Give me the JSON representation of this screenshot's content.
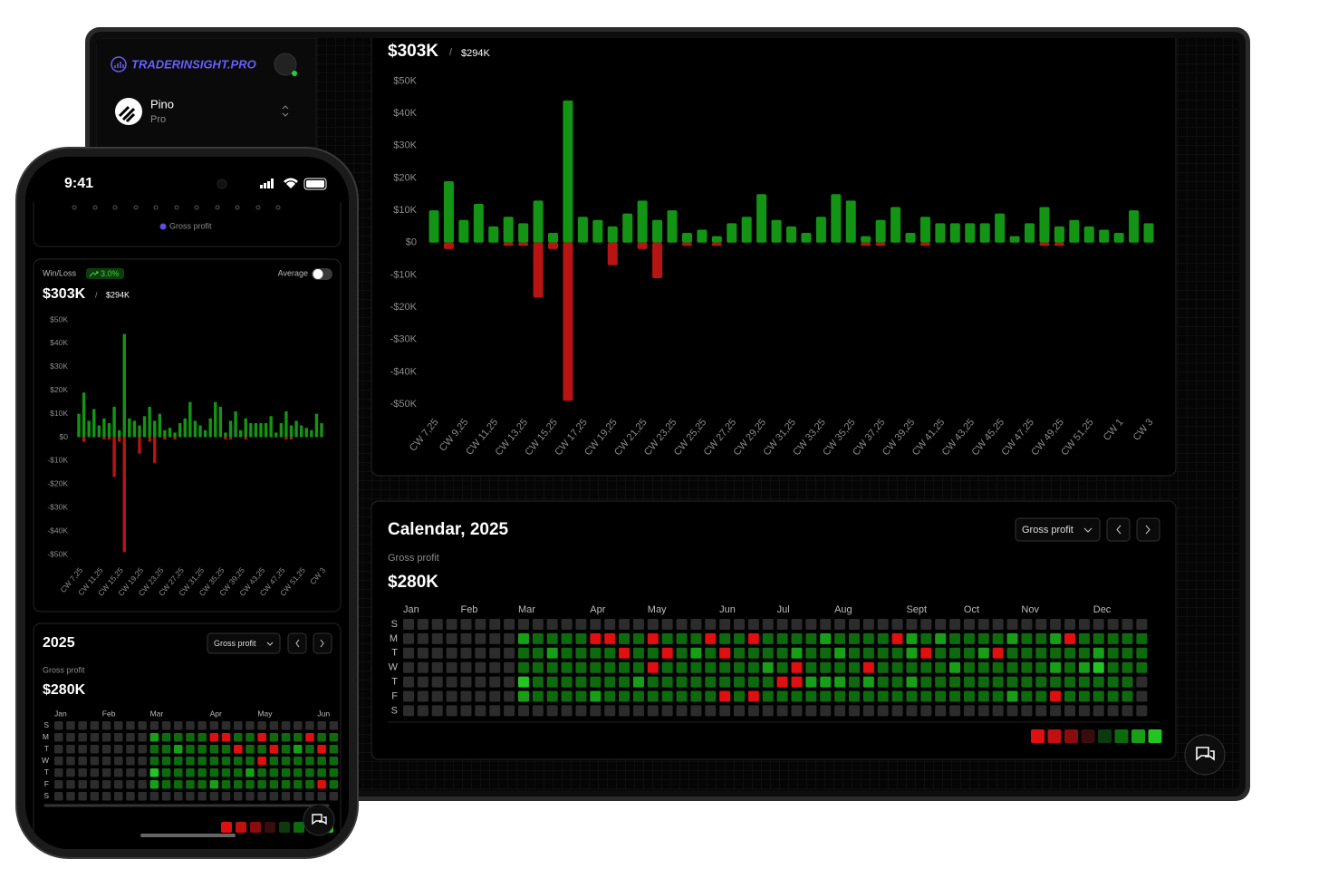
{
  "brand": "TRADERINSIGHT.PRO",
  "account": {
    "name": "Pino",
    "plan": "Pro"
  },
  "status_time": "9:41",
  "win_loss": {
    "label": "Win/Loss",
    "change": "3.0%",
    "average_label": "Average",
    "total": "$303K",
    "separator": "/",
    "previous": "$294K"
  },
  "chart_data": [
    {
      "type": "bar",
      "categories": [
        "CW 7,25",
        null,
        "CW 9,25",
        null,
        "CW 11,25",
        null,
        "CW 13,25",
        null,
        "CW 15,25",
        null,
        "CW 17,25",
        null,
        "CW 19,25",
        null,
        "CW 21,25",
        null,
        "CW 23,25",
        null,
        "CW 25,25",
        null,
        "CW 27,25",
        null,
        "CW 29,25",
        null,
        "CW 31,25",
        null,
        "CW 33,25",
        null,
        "CW 35,25",
        null,
        "CW 37,25",
        null,
        "CW 39,25",
        null,
        "CW 41,25",
        null,
        "CW 43,25",
        null,
        "CW 45,25",
        null,
        "CW 47,25",
        null,
        "CW 49,25",
        null,
        "CW 51,25",
        null,
        "CW 1",
        null,
        "CW 3"
      ],
      "series": [
        {
          "name": "Gross profit",
          "color": "#149414",
          "values": [
            10000,
            19000,
            7000,
            12000,
            5000,
            8000,
            6000,
            13000,
            3000,
            44000,
            8000,
            7000,
            5000,
            9000,
            13000,
            7000,
            10000,
            3000,
            4000,
            2000,
            6000,
            8000,
            15000,
            7000,
            5000,
            3000,
            8000,
            15000,
            13000,
            2000,
            7000,
            11000,
            3000,
            8000,
            6000,
            6000,
            6000,
            6000,
            9000,
            2000,
            6000,
            11000,
            5000,
            7000,
            5000,
            4000,
            3000,
            10000,
            6000
          ]
        },
        {
          "color": "#b81414",
          "values": [
            0,
            -2000,
            0,
            0,
            0,
            -1000,
            -1000,
            -17000,
            -2000,
            -49000,
            0,
            0,
            -7000,
            0,
            -2000,
            -11000,
            0,
            -1000,
            0,
            -1000,
            0,
            0,
            0,
            0,
            0,
            0,
            0,
            0,
            0,
            -1000,
            -1000,
            0,
            0,
            -1000,
            0,
            0,
            0,
            0,
            0,
            0,
            0,
            -1000,
            -1000,
            0,
            0,
            0,
            0,
            0,
            0
          ]
        }
      ],
      "ylim": [
        -50000,
        50000
      ],
      "yticks": [
        {
          "value": 50000,
          "label": "$50K"
        },
        {
          "value": 40000,
          "label": "$40K"
        },
        {
          "value": 30000,
          "label": "$30K"
        },
        {
          "value": 20000,
          "label": "$20K"
        },
        {
          "value": 10000,
          "label": "$10K"
        },
        {
          "value": 0,
          "label": "$0"
        },
        {
          "value": -10000,
          "label": "-$10K"
        },
        {
          "value": -20000,
          "label": "-$20K"
        },
        {
          "value": -30000,
          "label": "-$30K"
        },
        {
          "value": -40000,
          "label": "-$40K"
        },
        {
          "value": -50000,
          "label": "-$50K"
        }
      ],
      "grid": false
    },
    {
      "type": "heatmap",
      "title": "Calendar, 2025",
      "short_title": "2025",
      "metric_label": "Gross profit",
      "total": "$280K",
      "dropdown": "Gross profit",
      "x": [
        "Jan",
        null,
        null,
        null,
        "Feb",
        null,
        null,
        null,
        "Mar",
        null,
        null,
        null,
        null,
        "Apr",
        null,
        null,
        null,
        "May",
        null,
        null,
        null,
        null,
        "Jun",
        null,
        null,
        null,
        "Jul",
        null,
        null,
        null,
        "Aug",
        null,
        null,
        null,
        null,
        "Sept",
        null,
        null,
        null,
        "Oct",
        null,
        null,
        null,
        "Nov",
        null,
        null,
        null,
        null,
        "Dec",
        null,
        null,
        null
      ],
      "y": [
        "S",
        "M",
        "T",
        "W",
        "T",
        "F",
        "S"
      ],
      "values": [
        [
          0,
          0,
          0,
          0,
          0,
          0,
          0,
          0,
          0,
          0,
          0,
          0,
          0,
          0,
          0,
          0,
          0,
          0,
          0,
          0,
          0,
          0,
          0,
          0,
          0,
          0,
          0,
          0,
          0,
          0,
          0,
          0,
          0,
          0,
          0,
          0,
          0,
          0,
          0,
          0,
          0,
          0,
          0,
          0,
          0,
          0,
          0,
          0,
          0,
          0,
          0,
          0
        ],
        [
          0,
          0,
          0,
          0,
          0,
          0,
          0,
          0,
          3,
          2,
          2,
          2,
          2,
          -4,
          -4,
          2,
          2,
          -4,
          2,
          2,
          2,
          -4,
          2,
          2,
          -4,
          2,
          2,
          2,
          2,
          3,
          2,
          2,
          2,
          2,
          -4,
          3,
          2,
          3,
          2,
          2,
          2,
          2,
          3,
          2,
          2,
          3,
          -4,
          2,
          2,
          2,
          2,
          2
        ],
        [
          0,
          0,
          0,
          0,
          0,
          0,
          0,
          0,
          2,
          2,
          3,
          2,
          2,
          2,
          2,
          -4,
          2,
          2,
          -4,
          2,
          3,
          2,
          -4,
          2,
          2,
          2,
          2,
          3,
          2,
          2,
          3,
          2,
          2,
          2,
          2,
          3,
          -4,
          2,
          2,
          2,
          3,
          -4,
          2,
          2,
          2,
          2,
          2,
          2,
          3,
          2,
          2,
          2
        ],
        [
          0,
          0,
          0,
          0,
          0,
          0,
          0,
          0,
          2,
          2,
          2,
          2,
          2,
          2,
          2,
          2,
          2,
          -4,
          2,
          2,
          2,
          2,
          2,
          2,
          2,
          3,
          2,
          -4,
          2,
          2,
          2,
          2,
          -4,
          2,
          2,
          2,
          2,
          2,
          3,
          2,
          2,
          2,
          2,
          2,
          2,
          3,
          2,
          3,
          4,
          2,
          2,
          2
        ],
        [
          0,
          0,
          0,
          0,
          0,
          0,
          0,
          0,
          4,
          2,
          2,
          2,
          2,
          2,
          2,
          2,
          3,
          2,
          2,
          2,
          2,
          2,
          2,
          2,
          2,
          2,
          -4,
          -4,
          3,
          3,
          3,
          2,
          3,
          2,
          2,
          3,
          2,
          2,
          2,
          2,
          2,
          2,
          2,
          2,
          2,
          2,
          2,
          2,
          2,
          2,
          2,
          0
        ],
        [
          0,
          0,
          0,
          0,
          0,
          0,
          0,
          0,
          3,
          2,
          2,
          2,
          2,
          3,
          2,
          2,
          2,
          2,
          2,
          2,
          2,
          2,
          -4,
          2,
          -4,
          2,
          2,
          2,
          2,
          2,
          2,
          2,
          2,
          2,
          2,
          2,
          2,
          2,
          2,
          2,
          2,
          2,
          3,
          2,
          2,
          -4,
          2,
          2,
          2,
          2,
          2,
          0
        ],
        [
          0,
          0,
          0,
          0,
          0,
          0,
          0,
          0,
          0,
          0,
          0,
          0,
          0,
          0,
          0,
          0,
          0,
          0,
          0,
          0,
          0,
          0,
          0,
          0,
          0,
          0,
          0,
          0,
          0,
          0,
          0,
          0,
          0,
          0,
          0,
          0,
          0,
          0,
          0,
          0,
          0,
          0,
          0,
          0,
          0,
          0,
          0,
          0,
          0,
          0,
          0,
          0
        ]
      ],
      "colors": [
        "#e01010",
        "#c01010",
        "#8a0c0c",
        "#3a0d0d",
        "#0c3a0c",
        "#0d6b0d",
        "#17a017",
        "#22c522"
      ],
      "empty_color": "#2c2c2c"
    }
  ]
}
